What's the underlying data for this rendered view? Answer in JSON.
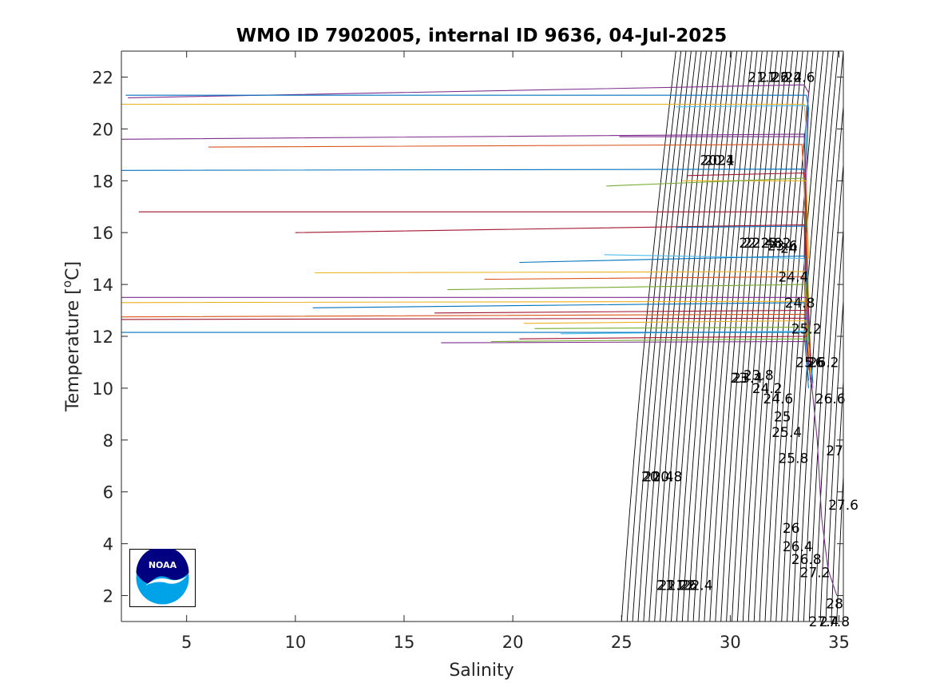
{
  "chart_data": {
    "type": "line",
    "title": "WMO ID 7902005, internal ID 9636, 04-Jul-2025",
    "xlabel": "Salinity",
    "ylabel_prefix": "Temperature [",
    "ylabel_sup": "o",
    "ylabel_suffix": "C]",
    "xlim": [
      2,
      35.2
    ],
    "ylim": [
      1,
      23
    ],
    "xticks": [
      5,
      10,
      15,
      20,
      25,
      30,
      35
    ],
    "yticks": [
      2,
      4,
      6,
      8,
      10,
      12,
      14,
      16,
      18,
      20,
      22
    ],
    "density_contours": {
      "count": 40,
      "salinity_at_T2_start": 25.0,
      "salinity_at_T2_end": 34.9,
      "salinity_at_T23_start": 27.5,
      "salinity_at_T23_end": 36.6
    },
    "contour_labels": [
      {
        "text": "21.2",
        "S": 31.5,
        "T": 22.0
      },
      {
        "text": "21.6",
        "S": 32.0,
        "T": 22.0
      },
      {
        "text": "22",
        "S": 32.3,
        "T": 22.0
      },
      {
        "text": "22.4",
        "S": 32.6,
        "T": 22.0
      },
      {
        "text": "22.6",
        "S": 33.2,
        "T": 22.0
      },
      {
        "text": "20",
        "S": 29.0,
        "T": 18.8
      },
      {
        "text": "20.4",
        "S": 29.5,
        "T": 18.8
      },
      {
        "text": "21",
        "S": 29.8,
        "T": 18.8
      },
      {
        "text": "22",
        "S": 30.8,
        "T": 15.6
      },
      {
        "text": "22.4",
        "S": 31.3,
        "T": 15.6
      },
      {
        "text": "22.8",
        "S": 31.7,
        "T": 15.6
      },
      {
        "text": "23.2",
        "S": 32.1,
        "T": 15.6
      },
      {
        "text": "23.6",
        "S": 32.4,
        "T": 15.5
      },
      {
        "text": "24",
        "S": 32.7,
        "T": 15.4
      },
      {
        "text": "24.4",
        "S": 32.9,
        "T": 14.3
      },
      {
        "text": "24.8",
        "S": 33.2,
        "T": 13.3
      },
      {
        "text": "25.2",
        "S": 33.5,
        "T": 12.3
      },
      {
        "text": "25.6",
        "S": 33.7,
        "T": 11.0
      },
      {
        "text": "26",
        "S": 33.9,
        "T": 11.0
      },
      {
        "text": "26.2",
        "S": 34.3,
        "T": 11.0
      },
      {
        "text": "23",
        "S": 30.4,
        "T": 10.4
      },
      {
        "text": "23.4",
        "S": 30.8,
        "T": 10.4
      },
      {
        "text": "23.8",
        "S": 31.3,
        "T": 10.5
      },
      {
        "text": "24.2",
        "S": 31.7,
        "T": 10.0
      },
      {
        "text": "24.6",
        "S": 32.2,
        "T": 9.6
      },
      {
        "text": "26.6",
        "S": 34.6,
        "T": 9.6
      },
      {
        "text": "25",
        "S": 32.4,
        "T": 8.9
      },
      {
        "text": "25.4",
        "S": 32.6,
        "T": 8.3
      },
      {
        "text": "25.8",
        "S": 32.9,
        "T": 7.3
      },
      {
        "text": "27",
        "S": 34.8,
        "T": 7.6
      },
      {
        "text": "20",
        "S": 26.3,
        "T": 6.6
      },
      {
        "text": "20.4",
        "S": 26.7,
        "T": 6.6
      },
      {
        "text": "20.8",
        "S": 27.1,
        "T": 6.6
      },
      {
        "text": "27.6",
        "S": 35.2,
        "T": 5.5
      },
      {
        "text": "26",
        "S": 32.8,
        "T": 4.6
      },
      {
        "text": "26.4",
        "S": 33.1,
        "T": 3.9
      },
      {
        "text": "26.8",
        "S": 33.5,
        "T": 3.4
      },
      {
        "text": "27.2",
        "S": 33.9,
        "T": 2.9
      },
      {
        "text": "21",
        "S": 27.0,
        "T": 2.4
      },
      {
        "text": "21.2",
        "S": 27.4,
        "T": 2.4
      },
      {
        "text": "21.6",
        "S": 27.8,
        "T": 2.4
      },
      {
        "text": "22",
        "S": 28.0,
        "T": 2.4
      },
      {
        "text": "22.4",
        "S": 28.5,
        "T": 2.4
      },
      {
        "text": "28",
        "S": 34.8,
        "T": 1.7
      },
      {
        "text": "27.4",
        "S": 34.3,
        "T": 1.0
      },
      {
        "text": "27.8",
        "S": 34.8,
        "T": 1.0
      }
    ],
    "series": [
      {
        "color": "#7e2f8e",
        "values": [
          [
            2.3,
            21.2
          ],
          [
            33.4,
            21.7
          ],
          [
            33.6,
            21.4
          ],
          [
            33.5,
            19.8
          ],
          [
            33.4,
            15.0
          ],
          [
            33.5,
            12.0
          ],
          [
            33.7,
            10.5
          ],
          [
            34.0,
            8.0
          ],
          [
            34.2,
            5.0
          ],
          [
            34.5,
            3.0
          ],
          [
            34.9,
            2.0
          ]
        ]
      },
      {
        "color": "#0072bd",
        "values": [
          [
            2.2,
            21.3
          ],
          [
            33.5,
            21.3
          ],
          [
            33.6,
            20.8
          ],
          [
            33.5,
            18.4
          ],
          [
            33.5,
            14.0
          ],
          [
            33.4,
            12.1
          ],
          [
            33.6,
            10.3
          ]
        ]
      },
      {
        "color": "#edb120",
        "values": [
          [
            2.0,
            20.95
          ],
          [
            33.4,
            20.95
          ],
          [
            33.5,
            20.0
          ],
          [
            33.5,
            18.0
          ],
          [
            33.6,
            13.3
          ],
          [
            33.7,
            11.0
          ]
        ]
      },
      {
        "color": "#4dbeee",
        "values": [
          [
            27.5,
            20.85
          ],
          [
            33.5,
            20.9
          ],
          [
            33.4,
            18.2
          ],
          [
            33.5,
            15.1
          ],
          [
            33.6,
            12.2
          ],
          [
            33.8,
            10.0
          ]
        ]
      },
      {
        "color": "#7e2f8e",
        "values": [
          [
            2.0,
            19.6
          ],
          [
            33.4,
            19.8
          ],
          [
            33.5,
            17.0
          ],
          [
            33.5,
            13.5
          ],
          [
            33.6,
            11.3
          ]
        ]
      },
      {
        "color": "#d95319",
        "values": [
          [
            6.0,
            19.3
          ],
          [
            33.3,
            19.4
          ],
          [
            33.5,
            16.0
          ],
          [
            33.6,
            12.7
          ],
          [
            33.7,
            10.5
          ]
        ]
      },
      {
        "color": "#7e2f8e",
        "values": [
          [
            24.9,
            19.7
          ],
          [
            33.4,
            19.7
          ],
          [
            33.5,
            17.5
          ]
        ]
      },
      {
        "color": "#0072bd",
        "values": [
          [
            2.0,
            18.4
          ],
          [
            33.4,
            18.45
          ],
          [
            33.5,
            14.8
          ],
          [
            33.6,
            12.1
          ],
          [
            33.8,
            10.2
          ]
        ]
      },
      {
        "color": "#a2142f",
        "values": [
          [
            28.0,
            18.2
          ],
          [
            33.4,
            18.3
          ],
          [
            33.5,
            16.0
          ]
        ]
      },
      {
        "color": "#edb120",
        "values": [
          [
            27.8,
            18.0
          ],
          [
            33.5,
            18.0
          ],
          [
            33.6,
            15.0
          ]
        ]
      },
      {
        "color": "#77ac30",
        "values": [
          [
            24.3,
            17.8
          ],
          [
            33.4,
            18.1
          ],
          [
            33.5,
            14.0
          ]
        ]
      },
      {
        "color": "#a2142f",
        "values": [
          [
            2.8,
            16.8
          ],
          [
            33.4,
            16.8
          ],
          [
            33.6,
            13.0
          ],
          [
            33.7,
            10.8
          ]
        ]
      },
      {
        "color": "#a2142f",
        "values": [
          [
            10.0,
            16.0
          ],
          [
            33.4,
            16.3
          ],
          [
            33.5,
            13.2
          ]
        ]
      },
      {
        "color": "#0072bd",
        "values": [
          [
            27.5,
            16.2
          ],
          [
            33.5,
            16.25
          ]
        ]
      },
      {
        "color": "#4dbeee",
        "values": [
          [
            24.2,
            15.15
          ],
          [
            33.4,
            15.0
          ],
          [
            33.5,
            12.5
          ]
        ]
      },
      {
        "color": "#0072bd",
        "values": [
          [
            20.3,
            14.85
          ],
          [
            33.5,
            15.1
          ],
          [
            33.6,
            12.0
          ]
        ]
      },
      {
        "color": "#edb120",
        "values": [
          [
            10.9,
            14.45
          ],
          [
            33.4,
            14.5
          ],
          [
            33.6,
            11.5
          ]
        ]
      },
      {
        "color": "#d95319",
        "values": [
          [
            18.7,
            14.2
          ],
          [
            33.4,
            14.3
          ],
          [
            33.5,
            12.0
          ]
        ]
      },
      {
        "color": "#77ac30",
        "values": [
          [
            17.0,
            13.8
          ],
          [
            33.5,
            14.0
          ],
          [
            33.6,
            11.8
          ]
        ]
      },
      {
        "color": "#7e2f8e",
        "values": [
          [
            2.0,
            13.5
          ],
          [
            33.5,
            13.5
          ],
          [
            33.6,
            11.0
          ]
        ]
      },
      {
        "color": "#edb120",
        "values": [
          [
            2.0,
            13.3
          ],
          [
            33.4,
            13.35
          ],
          [
            33.5,
            11.2
          ]
        ]
      },
      {
        "color": "#0072bd",
        "values": [
          [
            10.8,
            13.1
          ],
          [
            33.4,
            13.3
          ],
          [
            33.6,
            10.9
          ]
        ]
      },
      {
        "color": "#a2142f",
        "values": [
          [
            16.4,
            12.9
          ],
          [
            33.5,
            13.0
          ]
        ]
      },
      {
        "color": "#d95319",
        "values": [
          [
            2.0,
            12.75
          ],
          [
            33.4,
            12.85
          ],
          [
            33.6,
            10.7
          ]
        ]
      },
      {
        "color": "#a2142f",
        "values": [
          [
            2.0,
            12.65
          ],
          [
            33.5,
            12.7
          ]
        ]
      },
      {
        "color": "#edb120",
        "values": [
          [
            20.5,
            12.5
          ],
          [
            33.5,
            12.6
          ],
          [
            33.7,
            10.4
          ]
        ]
      },
      {
        "color": "#77ac30",
        "values": [
          [
            21.0,
            12.3
          ],
          [
            33.5,
            12.35
          ]
        ]
      },
      {
        "color": "#4dbeee",
        "values": [
          [
            22.2,
            12.1
          ],
          [
            33.5,
            12.2
          ]
        ]
      },
      {
        "color": "#0072bd",
        "values": [
          [
            2.0,
            12.15
          ],
          [
            33.4,
            12.15
          ],
          [
            33.6,
            10.0
          ]
        ]
      },
      {
        "color": "#a2142f",
        "values": [
          [
            20.3,
            11.9
          ],
          [
            33.5,
            12.0
          ]
        ]
      },
      {
        "color": "#77ac30",
        "values": [
          [
            19.0,
            11.8
          ],
          [
            33.5,
            11.9
          ]
        ]
      },
      {
        "color": "#7e2f8e",
        "values": [
          [
            16.7,
            11.75
          ],
          [
            33.5,
            11.8
          ],
          [
            33.7,
            10.2
          ]
        ]
      }
    ]
  }
}
